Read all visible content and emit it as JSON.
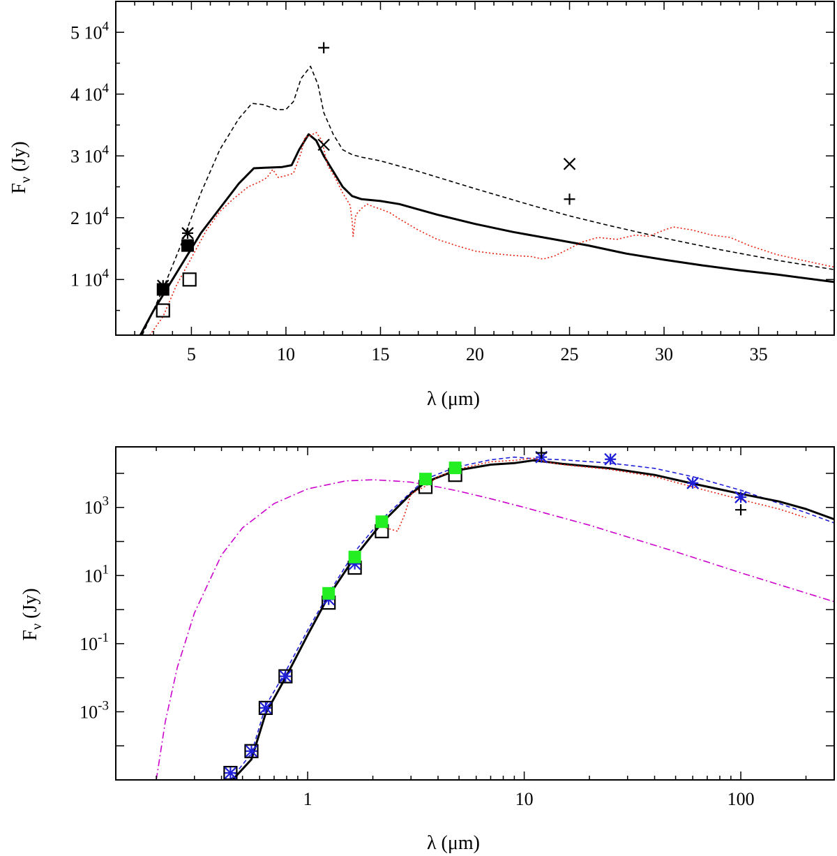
{
  "chart_data": [
    {
      "type": "line",
      "panel": "top",
      "xscale": "linear",
      "yscale": "linear",
      "xlim": [
        1,
        39
      ],
      "ylim": [
        1000,
        55000
      ],
      "xlabel": "λ (μm)",
      "ylabel_main": "F",
      "ylabel_sub": "ν",
      "ylabel_rest": " (Jy)",
      "xticks": [
        {
          "v": 5,
          "label": "5"
        },
        {
          "v": 10,
          "label": "10"
        },
        {
          "v": 15,
          "label": "15"
        },
        {
          "v": 20,
          "label": "20"
        },
        {
          "v": 25,
          "label": "25"
        },
        {
          "v": 30,
          "label": "30"
        },
        {
          "v": 35,
          "label": "35"
        }
      ],
      "yticks": [
        {
          "v": 10000,
          "mant": "1 10",
          "exp": "4"
        },
        {
          "v": 20000,
          "mant": "2 10",
          "exp": "4"
        },
        {
          "v": 30000,
          "mant": "3 10",
          "exp": "4"
        },
        {
          "v": 40000,
          "mant": "4 10",
          "exp": "4"
        },
        {
          "v": 50000,
          "mant": "5 10",
          "exp": "4"
        }
      ],
      "series": [
        {
          "name": "model-dashed",
          "color": "#000000",
          "style": "dashed",
          "width": 1.6,
          "x": [
            2.4,
            3.5,
            4.5,
            5.5,
            6.5,
            7.5,
            8.2,
            8.8,
            9.5,
            10.0,
            10.4,
            10.8,
            11.3,
            11.7,
            12.0,
            12.5,
            13.0,
            13.5,
            14.0,
            15.0,
            17.0,
            20.0,
            23.0,
            25.0,
            27.0,
            30.0,
            33.0,
            36.0,
            39.0
          ],
          "y": [
            1000,
            8500,
            16000,
            24000,
            31000,
            36000,
            38500,
            38300,
            37500,
            37500,
            38800,
            42500,
            44500,
            41500,
            37000,
            33500,
            31000,
            30200,
            29800,
            29200,
            27500,
            24700,
            22000,
            20300,
            18800,
            16700,
            14800,
            13100,
            11600
          ]
        },
        {
          "name": "model-solid",
          "color": "#000000",
          "style": "solid",
          "width": 3,
          "x": [
            2.3,
            3.0,
            3.5,
            4.0,
            4.8,
            5.5,
            6.5,
            7.5,
            8.3,
            9.0,
            9.8,
            10.3,
            10.7,
            11.2,
            11.6,
            12.0,
            12.5,
            13.0,
            13.5,
            14.0,
            15.0,
            16.0,
            18.0,
            20.0,
            22.0,
            24.0,
            26.0,
            28.0,
            30.0,
            32.0,
            34.0,
            36.0,
            39.0
          ],
          "y": [
            1000,
            5000,
            7500,
            10000,
            14000,
            17500,
            21500,
            25500,
            28000,
            28100,
            28200,
            28500,
            31000,
            33500,
            32500,
            30000,
            27500,
            25000,
            23500,
            23000,
            22700,
            22200,
            20500,
            19000,
            17700,
            16600,
            15500,
            14200,
            13200,
            12300,
            11500,
            10800,
            9600
          ]
        },
        {
          "name": "observed-spectrum",
          "color": "#e8200c",
          "style": "dotted",
          "width": 1.6,
          "x": [
            2.8,
            3.5,
            4.2,
            5.0,
            5.8,
            6.5,
            7.2,
            8.0,
            8.6,
            9.0,
            9.3,
            9.6,
            10.0,
            10.4,
            10.8,
            11.0,
            11.3,
            11.6,
            11.9,
            12.2,
            12.6,
            13.0,
            13.4,
            13.5,
            13.55,
            13.7,
            14.0,
            14.3,
            14.6,
            15.0,
            15.5,
            16.0,
            17.0,
            18.0,
            19.0,
            20.0,
            21.0,
            22.0,
            23.0,
            23.6,
            24.2,
            25.0,
            25.6,
            26.5,
            27.5,
            28.5,
            29.2,
            30.0,
            30.5,
            31.5,
            32.5,
            33.5,
            34.5,
            36.0,
            37.5,
            39.0
          ],
          "y": [
            1000,
            4000,
            9000,
            13500,
            18000,
            21000,
            23000,
            25000,
            25800,
            26500,
            27800,
            26500,
            26800,
            27200,
            30500,
            33000,
            33300,
            33800,
            32500,
            28500,
            26500,
            24000,
            22000,
            19500,
            17000,
            20500,
            21500,
            22200,
            21800,
            21400,
            20800,
            19800,
            18000,
            16500,
            15500,
            14600,
            14200,
            13900,
            13700,
            13300,
            13800,
            15000,
            16000,
            16800,
            16500,
            17200,
            17000,
            18000,
            18500,
            18000,
            17200,
            16800,
            15500,
            14000,
            13000,
            12000
          ]
        }
      ],
      "points": [
        {
          "name": "plus",
          "marker": "plus",
          "color": "#000000",
          "x": [
            12.0,
            25.0
          ],
          "y": [
            47500,
            23000
          ]
        },
        {
          "name": "cross",
          "marker": "cross",
          "color": "#000000",
          "x": [
            12.0,
            25.0
          ],
          "y": [
            31800,
            28700
          ]
        },
        {
          "name": "star",
          "marker": "star",
          "color": "#000000",
          "x": [
            3.5,
            4.8
          ],
          "y": [
            9000,
            17500
          ]
        },
        {
          "name": "filled-square",
          "marker": "filled-square",
          "color": "#000000",
          "x": [
            3.5,
            4.8
          ],
          "y": [
            8400,
            15500
          ]
        },
        {
          "name": "open-square",
          "marker": "open-square",
          "color": "#000000",
          "x": [
            3.5,
            4.9
          ],
          "y": [
            5000,
            10000
          ]
        }
      ]
    },
    {
      "type": "line",
      "panel": "bottom",
      "xscale": "log",
      "yscale": "log",
      "xlim": [
        0.13,
        270
      ],
      "ylim": [
        1e-05,
        60000
      ],
      "xlabel": "λ (μm)",
      "ylabel_main": "F",
      "ylabel_sub": "ν",
      "ylabel_rest": " (Jy)",
      "xticks": [
        {
          "v": 1,
          "label": "1"
        },
        {
          "v": 10,
          "label": "10"
        },
        {
          "v": 100,
          "label": "100"
        }
      ],
      "yticks": [
        {
          "v": 0.001,
          "mant": "10",
          "exp": "-3"
        },
        {
          "v": 0.1,
          "mant": "10",
          "exp": "-1"
        },
        {
          "v": 10,
          "mant": "10",
          "exp": "1"
        },
        {
          "v": 1000,
          "mant": "10",
          "exp": "3"
        }
      ],
      "series": [
        {
          "name": "stellar-blackbody",
          "color": "#cc00cc",
          "style": "dashdot",
          "width": 1.6,
          "x": [
            0.2,
            0.22,
            0.25,
            0.3,
            0.4,
            0.5,
            0.7,
            1.0,
            1.5,
            2.0,
            2.5,
            3.0,
            4.0,
            5.0,
            7.0,
            10.0,
            20.0,
            50.0,
            100.0,
            270.0
          ],
          "y": [
            1e-05,
            0.0005,
            0.02,
            0.8,
            40,
            250,
            1300,
            3500,
            6000,
            6500,
            6000,
            5500,
            4000,
            3000,
            1800,
            1000,
            300,
            50,
            12,
            1.7
          ]
        },
        {
          "name": "model-blue-dashed",
          "color": "#1f1fd8",
          "style": "dashed",
          "width": 1.6,
          "x": [
            0.44,
            0.55,
            0.64,
            0.79,
            1.0,
            1.25,
            1.65,
            2.2,
            3.0,
            3.5,
            4.8,
            7.0,
            9.0,
            11.0,
            15.0,
            25.0,
            40.0,
            60.0,
            100.0,
            200.0,
            270.0
          ],
          "y": [
            1e-05,
            6e-05,
            0.0015,
            0.015,
            0.25,
            3,
            50,
            450,
            2800,
            6800,
            15000,
            25000,
            30000,
            27000,
            25000,
            20000,
            14000,
            8000,
            3200,
            700,
            350
          ]
        },
        {
          "name": "model-solid",
          "color": "#000000",
          "style": "solid",
          "width": 3,
          "x": [
            0.45,
            0.55,
            0.64,
            0.79,
            1.0,
            1.25,
            1.65,
            2.2,
            3.0,
            3.5,
            4.8,
            7.0,
            9.0,
            11.0,
            12.5,
            15.0,
            25.0,
            40.0,
            60.0,
            100.0,
            150.0,
            200.0,
            270.0
          ],
          "y": [
            1e-05,
            4e-05,
            0.0009,
            0.01,
            0.18,
            2.5,
            35,
            350,
            2500,
            5500,
            12000,
            18000,
            20000,
            24000,
            22000,
            19000,
            14000,
            9000,
            5000,
            2500,
            1500,
            900,
            450
          ]
        },
        {
          "name": "observed-spectrum",
          "color": "#e8200c",
          "style": "dotted",
          "width": 1.6,
          "x": [
            2.3,
            2.6,
            2.8,
            3.0,
            3.5,
            4.0,
            5.0,
            7.0,
            9.0,
            11.0,
            12.5,
            15.0,
            25.0,
            40.0,
            60.0,
            100.0,
            150.0,
            200.0
          ],
          "y": [
            250,
            200,
            600,
            2500,
            4200,
            8000,
            13500,
            22000,
            24000,
            28000,
            22000,
            18000,
            13000,
            8000,
            4000,
            1700,
            900,
            500
          ]
        }
      ],
      "points": [
        {
          "name": "open-square",
          "marker": "open-square",
          "color": "#000000",
          "x": [
            0.44,
            0.55,
            0.64,
            0.79,
            1.25,
            1.65,
            2.2,
            3.5,
            4.8
          ],
          "y": [
            1.6e-05,
            7e-05,
            0.0013,
            0.011,
            1.6,
            17,
            200,
            4000,
            9000
          ]
        },
        {
          "name": "blue-star",
          "marker": "star",
          "color": "#1f1fd8",
          "x": [
            0.44,
            0.55,
            0.64,
            0.79,
            1.25,
            1.65,
            12.0,
            25.0,
            60.0,
            100.0
          ],
          "y": [
            1.6e-05,
            7e-05,
            0.0013,
            0.011,
            2.0,
            22,
            30000,
            26000,
            5200,
            2000
          ]
        },
        {
          "name": "blue-cross",
          "marker": "cross",
          "color": "#1f1fd8",
          "x": [
            12.0,
            25.0,
            60.0,
            100.0
          ],
          "y": [
            30000,
            26000,
            5200,
            2000
          ]
        },
        {
          "name": "plus",
          "marker": "plus",
          "color": "#000000",
          "x": [
            12.0,
            100.0
          ],
          "y": [
            40000,
            850
          ]
        },
        {
          "name": "green-square",
          "marker": "filled-square",
          "color": "#22ee22",
          "x": [
            1.25,
            1.65,
            2.2,
            3.5,
            4.8
          ],
          "y": [
            3.0,
            35,
            380,
            6800,
            14500
          ]
        }
      ]
    }
  ]
}
